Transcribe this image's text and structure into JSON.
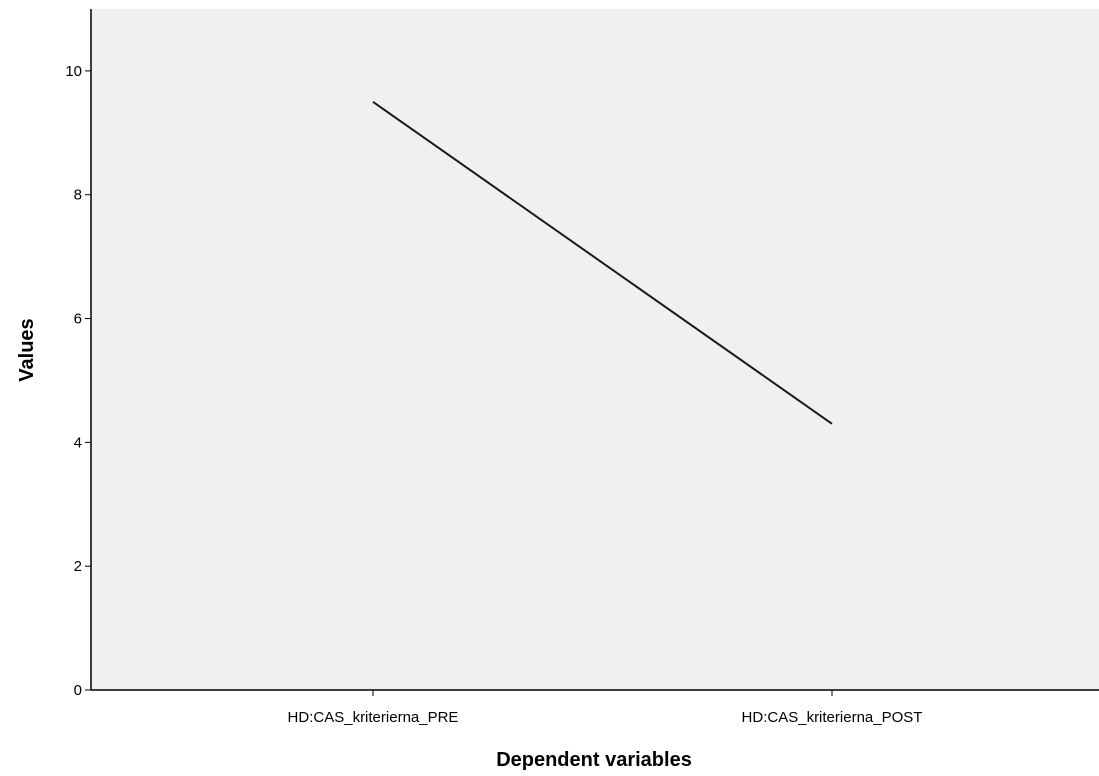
{
  "chart_data": {
    "type": "line",
    "title": "",
    "xlabel": "Dependent variables",
    "ylabel": "Values",
    "categories": [
      "HD:CAS_kriterierna_PRE",
      "HD:CAS_kriterierna_POST"
    ],
    "series": [
      {
        "values": [
          9.5,
          4.3
        ]
      }
    ],
    "ylim": [
      0,
      11
    ],
    "yticks": [
      "0",
      "2",
      "4",
      "6",
      "8",
      "10"
    ],
    "grid": false,
    "legend": "none",
    "colors": {
      "plot_background": "#f0f0f0",
      "line": "#1a1a1a",
      "axis": "#000000"
    }
  }
}
